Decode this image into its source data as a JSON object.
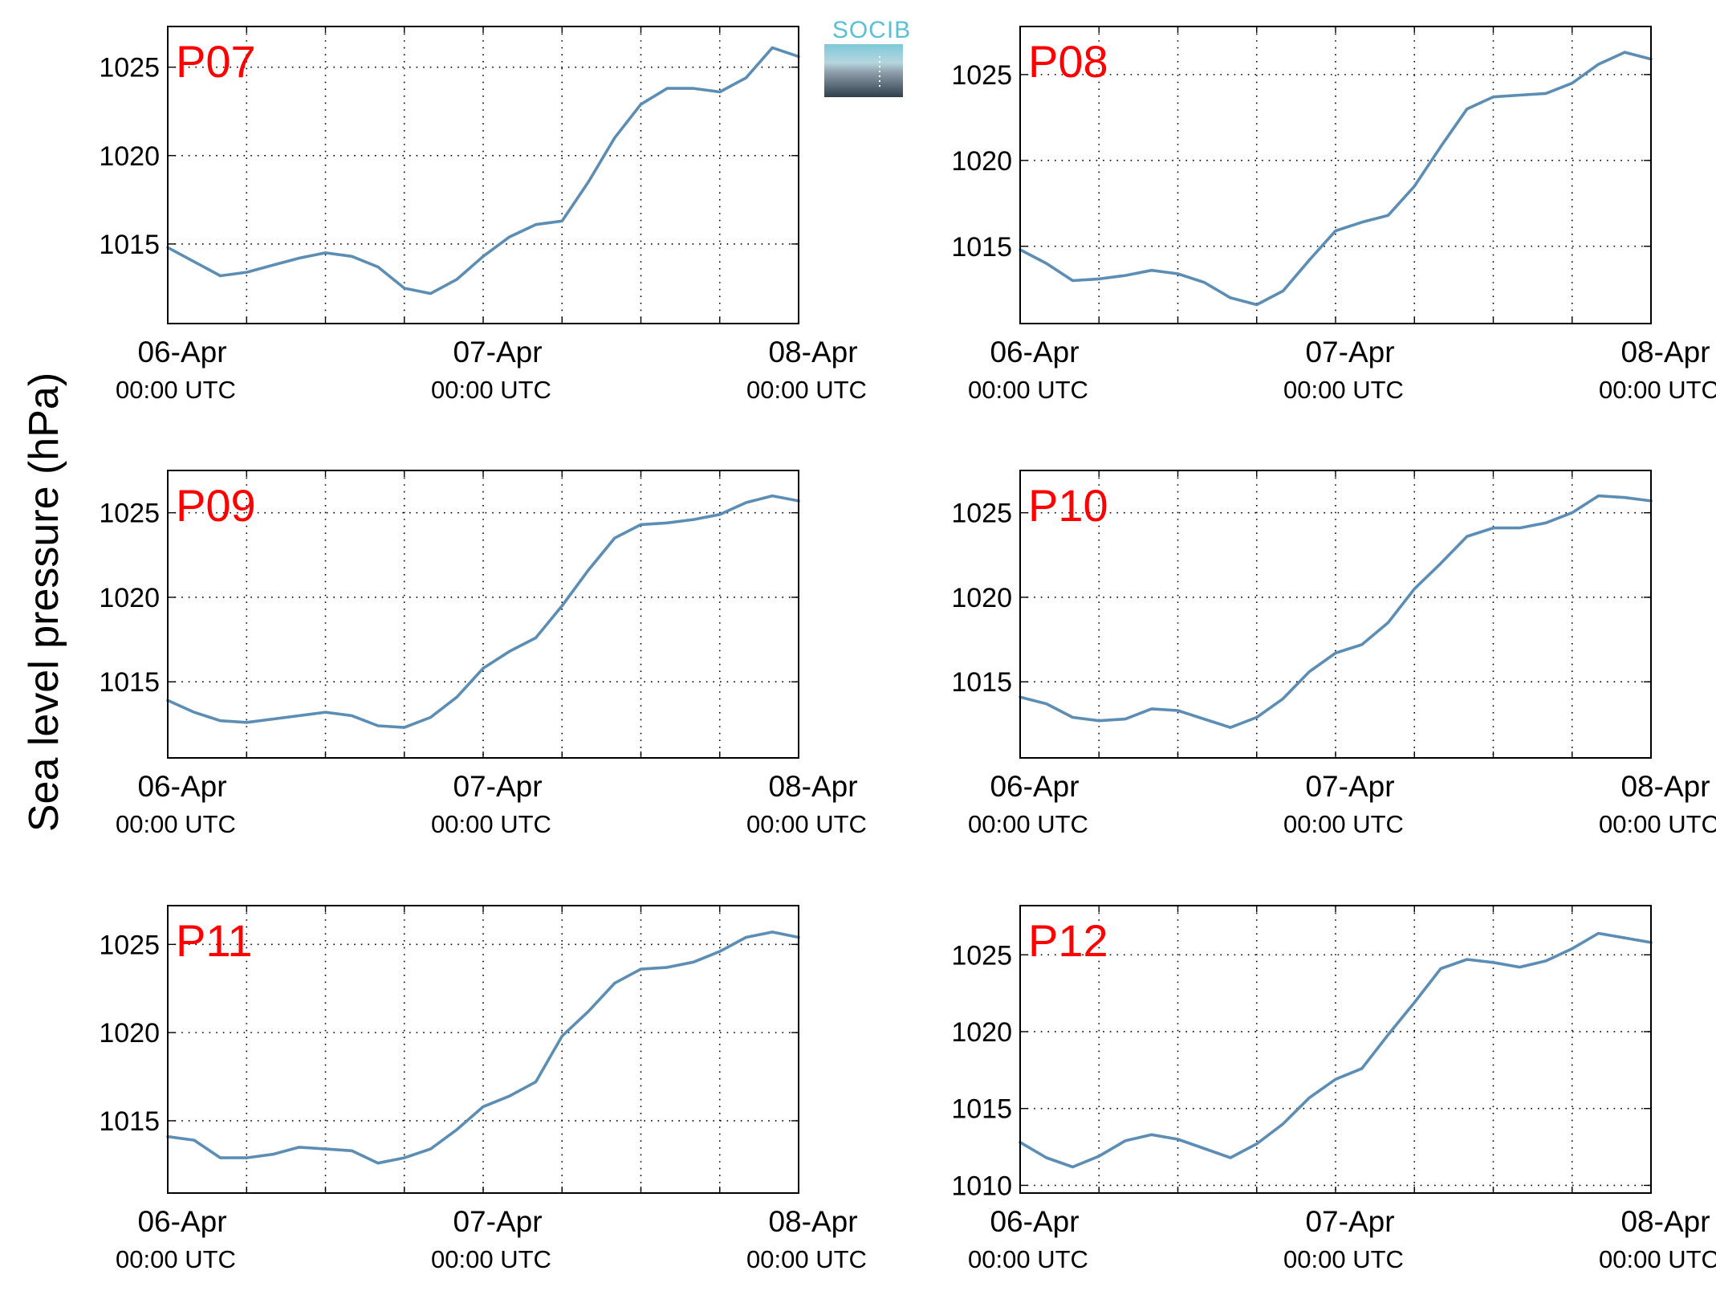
{
  "figure": {
    "ylabel": "Sea level pressure (hPa)",
    "logo_text": "SOCIB",
    "line_color": "#5b8db5",
    "label_color": "#ff0000"
  },
  "chart_data": [
    {
      "type": "line",
      "panel_label": "P07",
      "ylim": [
        1010.5,
        1027.3
      ],
      "yticks": [
        "1015",
        "1020",
        "1025"
      ],
      "xticks": [
        {
          "date": "06-Apr",
          "time": "00:00 UTC"
        },
        {
          "date": "07-Apr",
          "time": "00:00 UTC"
        },
        {
          "date": "08-Apr",
          "time": "00:00 UTC"
        }
      ],
      "x_range_hours": [
        0,
        48
      ],
      "grid": true,
      "x_hours": [
        0,
        2,
        4,
        6,
        8,
        10,
        12,
        14,
        16,
        18,
        20,
        22,
        24,
        26,
        28,
        30,
        32,
        34,
        36,
        38,
        40,
        42,
        44,
        46,
        48
      ],
      "values": [
        1014.8,
        1014.0,
        1013.2,
        1013.4,
        1013.8,
        1014.2,
        1014.5,
        1014.3,
        1013.7,
        1012.5,
        1012.2,
        1013.0,
        1014.3,
        1015.4,
        1016.1,
        1016.3,
        1018.5,
        1021.0,
        1022.9,
        1023.8,
        1023.8,
        1023.6,
        1024.4,
        1026.1,
        1025.6
      ]
    },
    {
      "type": "line",
      "panel_label": "P08",
      "ylim": [
        1010.5,
        1027.8
      ],
      "yticks": [
        "1015",
        "1020",
        "1025"
      ],
      "xticks": [
        {
          "date": "06-Apr",
          "time": "00:00 UTC"
        },
        {
          "date": "07-Apr",
          "time": "00:00 UTC"
        },
        {
          "date": "08-Apr",
          "time": "00:00 UTC"
        }
      ],
      "x_range_hours": [
        0,
        48
      ],
      "grid": true,
      "x_hours": [
        0,
        2,
        4,
        6,
        8,
        10,
        12,
        14,
        16,
        18,
        20,
        22,
        24,
        26,
        28,
        30,
        32,
        34,
        36,
        38,
        40,
        42,
        44,
        46,
        48
      ],
      "values": [
        1014.8,
        1014.0,
        1013.0,
        1013.1,
        1013.3,
        1013.6,
        1013.4,
        1012.9,
        1012.0,
        1011.6,
        1012.4,
        1014.2,
        1015.9,
        1016.4,
        1016.8,
        1018.5,
        1020.8,
        1023.0,
        1023.7,
        1023.8,
        1023.9,
        1024.5,
        1025.6,
        1026.3,
        1025.9
      ]
    },
    {
      "type": "line",
      "panel_label": "P09",
      "ylim": [
        1010.5,
        1027.5
      ],
      "yticks": [
        "1015",
        "1020",
        "1025"
      ],
      "xticks": [
        {
          "date": "06-Apr",
          "time": "00:00 UTC"
        },
        {
          "date": "07-Apr",
          "time": "00:00 UTC"
        },
        {
          "date": "08-Apr",
          "time": "00:00 UTC"
        }
      ],
      "x_range_hours": [
        0,
        48
      ],
      "grid": true,
      "x_hours": [
        0,
        2,
        4,
        6,
        8,
        10,
        12,
        14,
        16,
        18,
        20,
        22,
        24,
        26,
        28,
        30,
        32,
        34,
        36,
        38,
        40,
        42,
        44,
        46,
        48
      ],
      "values": [
        1013.9,
        1013.2,
        1012.7,
        1012.6,
        1012.8,
        1013.0,
        1013.2,
        1013.0,
        1012.4,
        1012.3,
        1012.9,
        1014.1,
        1015.8,
        1016.8,
        1017.6,
        1019.5,
        1021.6,
        1023.5,
        1024.3,
        1024.4,
        1024.6,
        1024.9,
        1025.6,
        1026.0,
        1025.7
      ]
    },
    {
      "type": "line",
      "panel_label": "P10",
      "ylim": [
        1010.5,
        1027.5
      ],
      "yticks": [
        "1015",
        "1020",
        "1025"
      ],
      "xticks": [
        {
          "date": "06-Apr",
          "time": "00:00 UTC"
        },
        {
          "date": "07-Apr",
          "time": "00:00 UTC"
        },
        {
          "date": "08-Apr",
          "time": "00:00 UTC"
        }
      ],
      "x_range_hours": [
        0,
        48
      ],
      "grid": true,
      "x_hours": [
        0,
        2,
        4,
        6,
        8,
        10,
        12,
        14,
        16,
        18,
        20,
        22,
        24,
        26,
        28,
        30,
        32,
        34,
        36,
        38,
        40,
        42,
        44,
        46,
        48
      ],
      "values": [
        1014.1,
        1013.7,
        1012.9,
        1012.7,
        1012.8,
        1013.4,
        1013.3,
        1012.8,
        1012.3,
        1012.9,
        1014.0,
        1015.6,
        1016.7,
        1017.2,
        1018.5,
        1020.5,
        1022.0,
        1023.6,
        1024.1,
        1024.1,
        1024.4,
        1025.0,
        1026.0,
        1025.9,
        1025.7
      ]
    },
    {
      "type": "line",
      "panel_label": "P11",
      "ylim": [
        1010.9,
        1027.2
      ],
      "yticks": [
        "1015",
        "1020",
        "1025"
      ],
      "xticks": [
        {
          "date": "06-Apr",
          "time": "00:00 UTC"
        },
        {
          "date": "07-Apr",
          "time": "00:00 UTC"
        },
        {
          "date": "08-Apr",
          "time": "00:00 UTC"
        }
      ],
      "x_range_hours": [
        0,
        48
      ],
      "grid": true,
      "x_hours": [
        0,
        2,
        4,
        6,
        8,
        10,
        12,
        14,
        16,
        18,
        20,
        22,
        24,
        26,
        28,
        30,
        32,
        34,
        36,
        38,
        40,
        42,
        44,
        46,
        48
      ],
      "values": [
        1014.1,
        1013.9,
        1012.9,
        1012.9,
        1013.1,
        1013.5,
        1013.4,
        1013.3,
        1012.6,
        1012.9,
        1013.4,
        1014.5,
        1015.8,
        1016.4,
        1017.2,
        1019.8,
        1021.2,
        1022.8,
        1023.6,
        1023.7,
        1024.0,
        1024.6,
        1025.4,
        1025.7,
        1025.4
      ]
    },
    {
      "type": "line",
      "panel_label": "P12",
      "ylim": [
        1009.5,
        1028.2
      ],
      "yticks": [
        "1010",
        "1015",
        "1020",
        "1025"
      ],
      "xticks": [
        {
          "date": "06-Apr",
          "time": "00:00 UTC"
        },
        {
          "date": "07-Apr",
          "time": "00:00 UTC"
        },
        {
          "date": "08-Apr",
          "time": "00:00 UTC"
        }
      ],
      "x_range_hours": [
        0,
        48
      ],
      "grid": true,
      "x_hours": [
        0,
        2,
        4,
        6,
        8,
        10,
        12,
        14,
        16,
        18,
        20,
        22,
        24,
        26,
        28,
        30,
        32,
        34,
        36,
        38,
        40,
        42,
        44,
        46,
        48
      ],
      "values": [
        1012.8,
        1011.8,
        1011.2,
        1011.9,
        1012.9,
        1013.3,
        1013.0,
        1012.4,
        1011.8,
        1012.7,
        1014.0,
        1015.7,
        1016.9,
        1017.6,
        1019.8,
        1021.9,
        1024.1,
        1024.7,
        1024.5,
        1024.2,
        1024.6,
        1025.4,
        1026.4,
        1026.1,
        1025.8
      ]
    }
  ]
}
